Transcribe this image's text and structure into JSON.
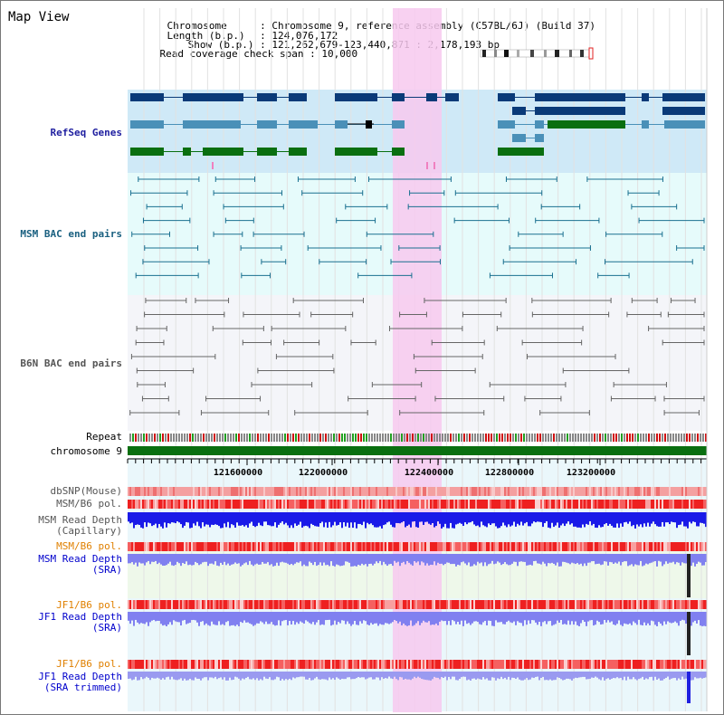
{
  "header": {
    "title": "Map View",
    "info": [
      {
        "key": "Chromosome",
        "value": "Chromosome 9, reference assembly (C57BL/6J) (Build 37)"
      },
      {
        "key": "Length (b.p.)",
        "value": "124,076,172"
      },
      {
        "key": "Show (b.p.)",
        "value": "121,262,679-123,440,871 : 2,178,193 bp"
      },
      {
        "key": "Read coverage check span",
        "value": "10,000"
      }
    ]
  },
  "sections": {
    "refseq": {
      "label": "RefSeq Genes",
      "color": "#2020a0"
    },
    "msm_bac": {
      "label": "MSM BAC end pairs",
      "color": "#1a6080"
    },
    "b6n_bac": {
      "label": "B6N BAC end pairs",
      "color": "#555555"
    }
  },
  "tracks": {
    "repeat": "Repeat",
    "chromosome": "chromosome 9",
    "dbsnp": "dbSNP(Mouse)",
    "msm_b6_pol": "MSM/B6 pol.",
    "msm_read_depth_cap": "MSM Read Depth\n(Capillary)",
    "msm_b6_pol_2": "MSM/B6 pol.",
    "msm_read_depth_sra": "MSM Read Depth\n(SRA)",
    "jf1_b6_pol": "JF1/B6 pol.",
    "jf1_read_depth_sra": "JF1 Read Depth\n(SRA)",
    "jf1_b6_pol_2": "JF1/B6 pol.",
    "jf1_read_depth_trimmed": "JF1 Read Depth\n(SRA trimmed)"
  },
  "axis": {
    "ticks": [
      "121600000",
      "122000000",
      "122400000",
      "122800000",
      "123200000"
    ]
  },
  "colors": {
    "refseq_bg": "#cfe9f7",
    "msm_bg": "#e6fbfb",
    "b6n_bg": "#f4f5f9",
    "highlight": "#f7c9ef",
    "gene_dark": "#0a3a78",
    "gene_light": "#4a90b8",
    "gene_green": "#0a6f10",
    "chromosome": "#0a6f10",
    "depth_blue": "#1a1ae8",
    "depth_light": "#8080f0",
    "pol_red": "#ee3333",
    "pol_orange_label": "#e08000",
    "label_blue": "#0000cc",
    "label_gray": "#555555"
  }
}
